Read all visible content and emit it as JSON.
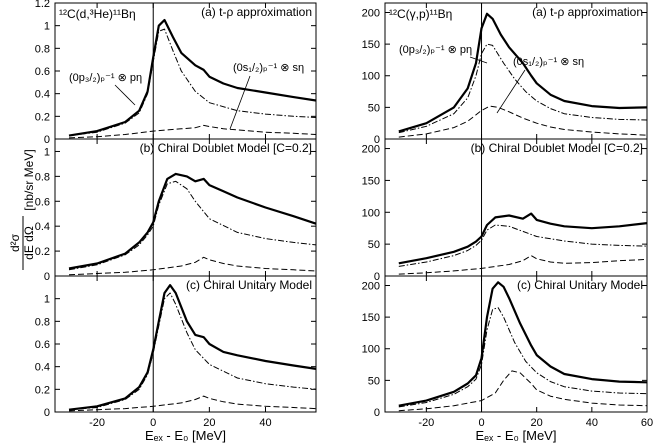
{
  "figure": {
    "y_axis_label": {
      "frac_num": "d²σ",
      "frac_den": "dE dΩ",
      "units": "[nb/sr MeV]"
    }
  },
  "chart_data": [
    {
      "type": "line",
      "column": 0,
      "row": 0,
      "panel_label": "(a) t-ρ approximation",
      "reaction": "¹²C(d,³He)¹¹Bη",
      "annotations": [
        "(0p₃/₂)ₚ⁻¹ ⊗ pη",
        "(0s₁/₂)ₚ⁻¹ ⊗ sη"
      ],
      "xlim": [
        -35,
        58
      ],
      "ylim": [
        0,
        1.2
      ],
      "yticks": [
        0,
        0.2,
        0.4,
        0.6,
        0.8,
        1,
        1.2
      ],
      "ytick_labels": [
        "0",
        "0.2",
        "0.4",
        "0.6",
        "0.8",
        "1",
        "1.2"
      ],
      "xticks": [
        -20,
        0,
        20,
        40
      ],
      "xtick_labels": [],
      "xlabel": "",
      "series": [
        {
          "style": "solid",
          "x": [
            -30,
            -20,
            -10,
            -5,
            -2,
            0,
            2,
            4,
            7,
            10,
            15,
            18,
            20,
            25,
            30,
            40,
            50,
            58
          ],
          "y": [
            0.03,
            0.07,
            0.15,
            0.25,
            0.42,
            0.72,
            1.0,
            1.05,
            0.9,
            0.76,
            0.65,
            0.61,
            0.55,
            0.49,
            0.45,
            0.41,
            0.37,
            0.34
          ]
        },
        {
          "style": "dashdot",
          "x": [
            -30,
            -20,
            -10,
            -5,
            -2,
            0,
            2,
            4,
            7,
            10,
            15,
            20,
            30,
            40,
            50,
            58
          ],
          "y": [
            0.03,
            0.06,
            0.14,
            0.23,
            0.4,
            0.68,
            0.95,
            0.97,
            0.78,
            0.6,
            0.42,
            0.32,
            0.25,
            0.22,
            0.2,
            0.19
          ]
        },
        {
          "style": "dashed",
          "x": [
            -30,
            -20,
            -10,
            0,
            5,
            10,
            15,
            18,
            20,
            25,
            30,
            40,
            50,
            58
          ],
          "y": [
            0.01,
            0.02,
            0.04,
            0.07,
            0.08,
            0.09,
            0.1,
            0.12,
            0.11,
            0.09,
            0.08,
            0.06,
            0.05,
            0.04
          ]
        }
      ]
    },
    {
      "type": "line",
      "column": 0,
      "row": 1,
      "panel_label": "(b) Chiral Doublet Model [C=0.2]",
      "xlim": [
        -35,
        58
      ],
      "ylim": [
        0,
        1.1
      ],
      "yticks": [
        0,
        0.2,
        0.4,
        0.6,
        0.8,
        1
      ],
      "ytick_labels": [
        "0",
        "0.2",
        "0.4",
        "0.6",
        "0.8",
        "1"
      ],
      "xticks": [
        -20,
        0,
        20,
        40
      ],
      "xtick_labels": [],
      "xlabel": "",
      "series": [
        {
          "style": "solid",
          "x": [
            -30,
            -20,
            -10,
            -5,
            -2,
            0,
            2,
            5,
            8,
            12,
            15,
            18,
            20,
            25,
            30,
            40,
            50,
            58
          ],
          "y": [
            0.06,
            0.1,
            0.18,
            0.27,
            0.35,
            0.43,
            0.6,
            0.78,
            0.82,
            0.8,
            0.76,
            0.78,
            0.73,
            0.68,
            0.63,
            0.55,
            0.48,
            0.42
          ]
        },
        {
          "style": "dashdot",
          "x": [
            -30,
            -20,
            -10,
            -5,
            -2,
            0,
            2,
            5,
            8,
            12,
            15,
            20,
            30,
            40,
            50,
            58
          ],
          "y": [
            0.05,
            0.09,
            0.17,
            0.25,
            0.33,
            0.4,
            0.57,
            0.74,
            0.76,
            0.7,
            0.6,
            0.46,
            0.35,
            0.3,
            0.27,
            0.25
          ]
        },
        {
          "style": "dashed",
          "x": [
            -30,
            -20,
            -10,
            0,
            10,
            15,
            18,
            20,
            25,
            30,
            40,
            50,
            58
          ],
          "y": [
            0.01,
            0.02,
            0.03,
            0.05,
            0.08,
            0.11,
            0.15,
            0.13,
            0.1,
            0.08,
            0.06,
            0.05,
            0.04
          ]
        }
      ]
    },
    {
      "type": "line",
      "column": 0,
      "row": 2,
      "panel_label": "(c) Chiral Unitary Model",
      "xlim": [
        -35,
        58
      ],
      "ylim": [
        0,
        1.2
      ],
      "yticks": [
        0,
        0.2,
        0.4,
        0.6,
        0.8,
        1
      ],
      "ytick_labels": [
        "0",
        "0.2",
        "0.4",
        "0.6",
        "0.8",
        "1"
      ],
      "xticks": [
        -20,
        0,
        20,
        40
      ],
      "xtick_labels": [
        "-20",
        "0",
        "20",
        "40"
      ],
      "xlabel": "Eₑₓ - E₀ [MeV]",
      "series": [
        {
          "style": "solid",
          "x": [
            -30,
            -20,
            -10,
            -5,
            -2,
            0,
            2,
            4,
            6,
            8,
            12,
            15,
            18,
            20,
            25,
            30,
            40,
            50,
            58
          ],
          "y": [
            0.02,
            0.05,
            0.12,
            0.22,
            0.35,
            0.55,
            0.8,
            1.05,
            1.12,
            1.05,
            0.8,
            0.68,
            0.66,
            0.6,
            0.53,
            0.5,
            0.45,
            0.41,
            0.38
          ]
        },
        {
          "style": "dashdot",
          "x": [
            -30,
            -20,
            -10,
            -5,
            -2,
            0,
            2,
            4,
            6,
            8,
            12,
            15,
            20,
            30,
            40,
            50,
            58
          ],
          "y": [
            0.02,
            0.04,
            0.11,
            0.2,
            0.33,
            0.52,
            0.76,
            1.0,
            1.05,
            0.95,
            0.7,
            0.55,
            0.42,
            0.3,
            0.25,
            0.22,
            0.2
          ]
        },
        {
          "style": "dashed",
          "x": [
            -30,
            -20,
            -10,
            0,
            10,
            15,
            18,
            20,
            25,
            30,
            40,
            50,
            58
          ],
          "y": [
            0.01,
            0.02,
            0.03,
            0.05,
            0.08,
            0.11,
            0.14,
            0.12,
            0.09,
            0.07,
            0.05,
            0.04,
            0.03
          ]
        }
      ]
    },
    {
      "type": "line",
      "column": 1,
      "row": 0,
      "panel_label": "(a) t-ρ approximation",
      "reaction": "¹²C(γ,p)¹¹Bη",
      "annotations": [
        "(0p₃/₂)ₚ⁻¹ ⊗ pη",
        "(0s₁/₂)ₚ⁻¹ ⊗ sη"
      ],
      "xlim": [
        -35,
        60
      ],
      "ylim": [
        0,
        215
      ],
      "yticks": [
        0,
        50,
        100,
        150,
        200
      ],
      "ytick_labels": [
        "0",
        "50",
        "100",
        "150",
        "200"
      ],
      "xticks": [
        -20,
        0,
        20,
        40,
        60
      ],
      "xtick_labels": [],
      "xlabel": "",
      "series": [
        {
          "style": "solid",
          "x": [
            -30,
            -20,
            -10,
            -5,
            -2,
            0,
            2,
            4,
            7,
            10,
            15,
            18,
            20,
            25,
            30,
            40,
            50,
            60
          ],
          "y": [
            12,
            25,
            50,
            80,
            120,
            175,
            198,
            190,
            165,
            145,
            120,
            100,
            88,
            70,
            60,
            52,
            49,
            50
          ]
        },
        {
          "style": "dashdot",
          "x": [
            -30,
            -20,
            -10,
            -5,
            -2,
            0,
            2,
            4,
            8,
            12,
            16,
            20,
            25,
            30,
            40,
            50,
            60
          ],
          "y": [
            10,
            20,
            40,
            65,
            100,
            135,
            150,
            148,
            120,
            95,
            75,
            60,
            48,
            40,
            34,
            31,
            30
          ]
        },
        {
          "style": "dashed",
          "x": [
            -30,
            -20,
            -10,
            -5,
            0,
            3,
            6,
            10,
            15,
            20,
            25,
            30,
            40,
            50,
            60
          ],
          "y": [
            3,
            8,
            18,
            28,
            45,
            52,
            50,
            43,
            33,
            25,
            19,
            15,
            11,
            8,
            6
          ]
        }
      ]
    },
    {
      "type": "line",
      "column": 1,
      "row": 1,
      "panel_label": "(b) Chiral Doublet Model [C=0.2]",
      "xlim": [
        -35,
        60
      ],
      "ylim": [
        0,
        215
      ],
      "yticks": [
        0,
        50,
        100,
        150,
        200
      ],
      "ytick_labels": [
        "0",
        "50",
        "100",
        "150",
        "200"
      ],
      "xticks": [
        -20,
        0,
        20,
        40,
        60
      ],
      "xtick_labels": [],
      "xlabel": "",
      "series": [
        {
          "style": "solid",
          "x": [
            -30,
            -20,
            -10,
            -5,
            -2,
            0,
            2,
            5,
            10,
            15,
            18,
            20,
            25,
            30,
            40,
            50,
            60
          ],
          "y": [
            20,
            28,
            38,
            46,
            54,
            62,
            80,
            92,
            95,
            90,
            98,
            88,
            82,
            78,
            75,
            78,
            83
          ]
        },
        {
          "style": "dashdot",
          "x": [
            -30,
            -20,
            -10,
            -5,
            -2,
            0,
            2,
            5,
            10,
            15,
            20,
            30,
            40,
            50,
            60
          ],
          "y": [
            15,
            22,
            32,
            40,
            48,
            56,
            72,
            80,
            78,
            70,
            62,
            55,
            50,
            48,
            47
          ]
        },
        {
          "style": "dashed",
          "x": [
            -30,
            -20,
            -10,
            0,
            10,
            15,
            18,
            20,
            25,
            30,
            40,
            50,
            60
          ],
          "y": [
            3,
            5,
            8,
            12,
            18,
            24,
            32,
            27,
            22,
            20,
            21,
            24,
            26
          ]
        }
      ]
    },
    {
      "type": "line",
      "column": 1,
      "row": 2,
      "panel_label": "(c) Chiral Unitary Model",
      "xlim": [
        -35,
        60
      ],
      "ylim": [
        0,
        215
      ],
      "yticks": [
        0,
        50,
        100,
        150,
        200
      ],
      "ytick_labels": [
        "0",
        "50",
        "100",
        "150",
        "200"
      ],
      "xticks": [
        -20,
        0,
        20,
        40,
        60
      ],
      "xtick_labels": [
        "-20",
        "0",
        "20",
        "40",
        "60"
      ],
      "xlabel": "Eₑₓ - E₀ [MeV]",
      "series": [
        {
          "style": "solid",
          "x": [
            -30,
            -20,
            -10,
            -5,
            -2,
            0,
            2,
            4,
            6,
            8,
            10,
            14,
            18,
            20,
            25,
            30,
            40,
            50,
            60
          ],
          "y": [
            10,
            18,
            32,
            45,
            58,
            85,
            150,
            195,
            205,
            198,
            180,
            140,
            105,
            90,
            72,
            60,
            52,
            48,
            47
          ]
        },
        {
          "style": "dashdot",
          "x": [
            -30,
            -20,
            -10,
            -5,
            -2,
            0,
            2,
            4,
            6,
            8,
            12,
            16,
            20,
            25,
            30,
            40,
            50,
            60
          ],
          "y": [
            8,
            15,
            28,
            40,
            52,
            75,
            130,
            162,
            165,
            150,
            110,
            80,
            62,
            48,
            40,
            33,
            30,
            29
          ]
        },
        {
          "style": "dashed",
          "x": [
            -30,
            -20,
            -10,
            0,
            5,
            8,
            11,
            14,
            18,
            20,
            25,
            30,
            40,
            50,
            60
          ],
          "y": [
            2,
            5,
            10,
            18,
            30,
            50,
            65,
            62,
            45,
            35,
            25,
            20,
            14,
            11,
            10
          ]
        }
      ]
    }
  ]
}
